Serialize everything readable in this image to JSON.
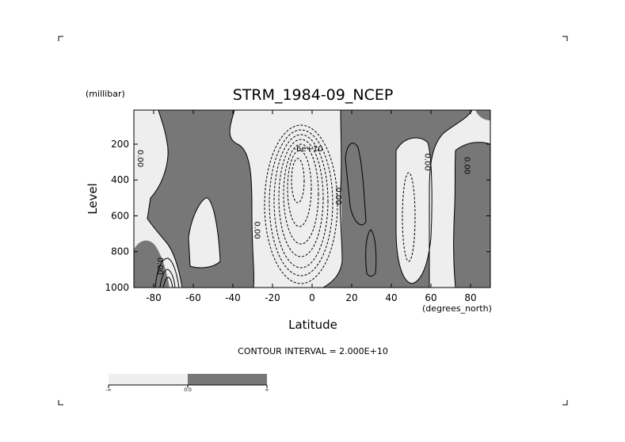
{
  "chart_data": {
    "type": "contour",
    "title": "STRM_1984-09_NCEP",
    "xlabel": "Latitude",
    "ylabel": "Level",
    "x_units": "(degrees_north)",
    "y_units": "(millibar)",
    "xlim": [
      -90,
      90
    ],
    "ylim": [
      1000,
      10
    ],
    "y_inverted": true,
    "x_ticks": [
      -80,
      -60,
      -40,
      -20,
      0,
      20,
      40,
      60,
      80
    ],
    "y_ticks": [
      200,
      400,
      600,
      800,
      1000
    ],
    "x_tick_labels": [
      "-80",
      "-60",
      "-40",
      "-20",
      "0",
      "20",
      "40",
      "60",
      "80"
    ],
    "y_tick_labels": [
      "200",
      "400",
      "600",
      "800",
      "1000"
    ],
    "contour_interval_text": "CONTOUR INTERVAL = 2.000E+10",
    "contour_labels": [
      {
        "text": "0.00",
        "x": -88,
        "y": 280
      },
      {
        "text": "0.00",
        "x": -78,
        "y": 880
      },
      {
        "text": "0.00",
        "x": -29,
        "y": 680
      },
      {
        "text": "-6e+10",
        "x": -2,
        "y": 240
      },
      {
        "text": "0.00",
        "x": 12,
        "y": 490
      },
      {
        "text": "0.00",
        "x": 57,
        "y": 300
      },
      {
        "text": "0.00",
        "x": 77,
        "y": 320
      }
    ],
    "fill_colors": {
      "negative": "#eeeeee",
      "positive": "#777777"
    },
    "colorbar": {
      "ticks": [
        "-∞",
        "0.0",
        "∞"
      ]
    },
    "grid": false,
    "legend": "bottom-left colorbar"
  }
}
